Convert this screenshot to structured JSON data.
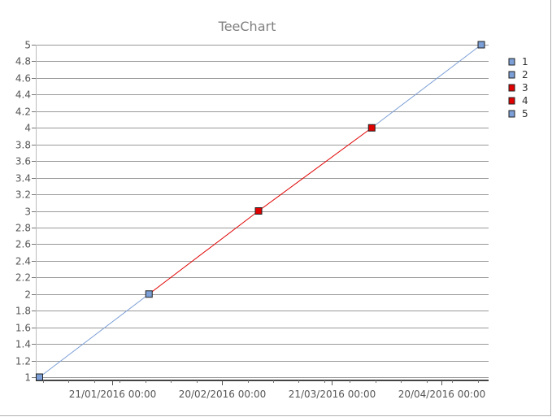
{
  "chart_data": {
    "type": "line",
    "title": "TeeChart",
    "xlabel": "",
    "ylabel": "",
    "ylim": [
      1,
      5
    ],
    "y_ticks": [
      "1",
      "1.2",
      "1.4",
      "1.6",
      "1.8",
      "2",
      "2.2",
      "2.4",
      "2.6",
      "2.8",
      "3",
      "3.2",
      "3.4",
      "3.6",
      "3.8",
      "4",
      "4.2",
      "4.4",
      "4.6",
      "4.8",
      "5"
    ],
    "x_ticks": [
      "21/01/2016 00:00",
      "20/02/2016 00:00",
      "21/03/2016 00:00",
      "20/04/2016 00:00"
    ],
    "x_tick_dates": [
      "2016-01-21",
      "2016-02-20",
      "2016-03-21",
      "2016-04-20"
    ],
    "xlim": [
      "2015-12-31",
      "2016-05-03"
    ],
    "grid": true,
    "legend_position": "right",
    "points": [
      {
        "label": "1",
        "x": "2016-01-01",
        "y": 1,
        "color": "#7b9fd6"
      },
      {
        "label": "2",
        "x": "2016-01-31",
        "y": 2,
        "color": "#7b9fd6"
      },
      {
        "label": "3",
        "x": "2016-03-01",
        "y": 3,
        "color": "#e00000"
      },
      {
        "label": "4",
        "x": "2016-04-01",
        "y": 4,
        "color": "#e00000"
      },
      {
        "label": "5",
        "x": "2016-05-01",
        "y": 5,
        "color": "#7b9fd6"
      }
    ],
    "colors": {
      "blue": "#7b9fd6",
      "red": "#e00000",
      "grid": "#999999"
    }
  }
}
